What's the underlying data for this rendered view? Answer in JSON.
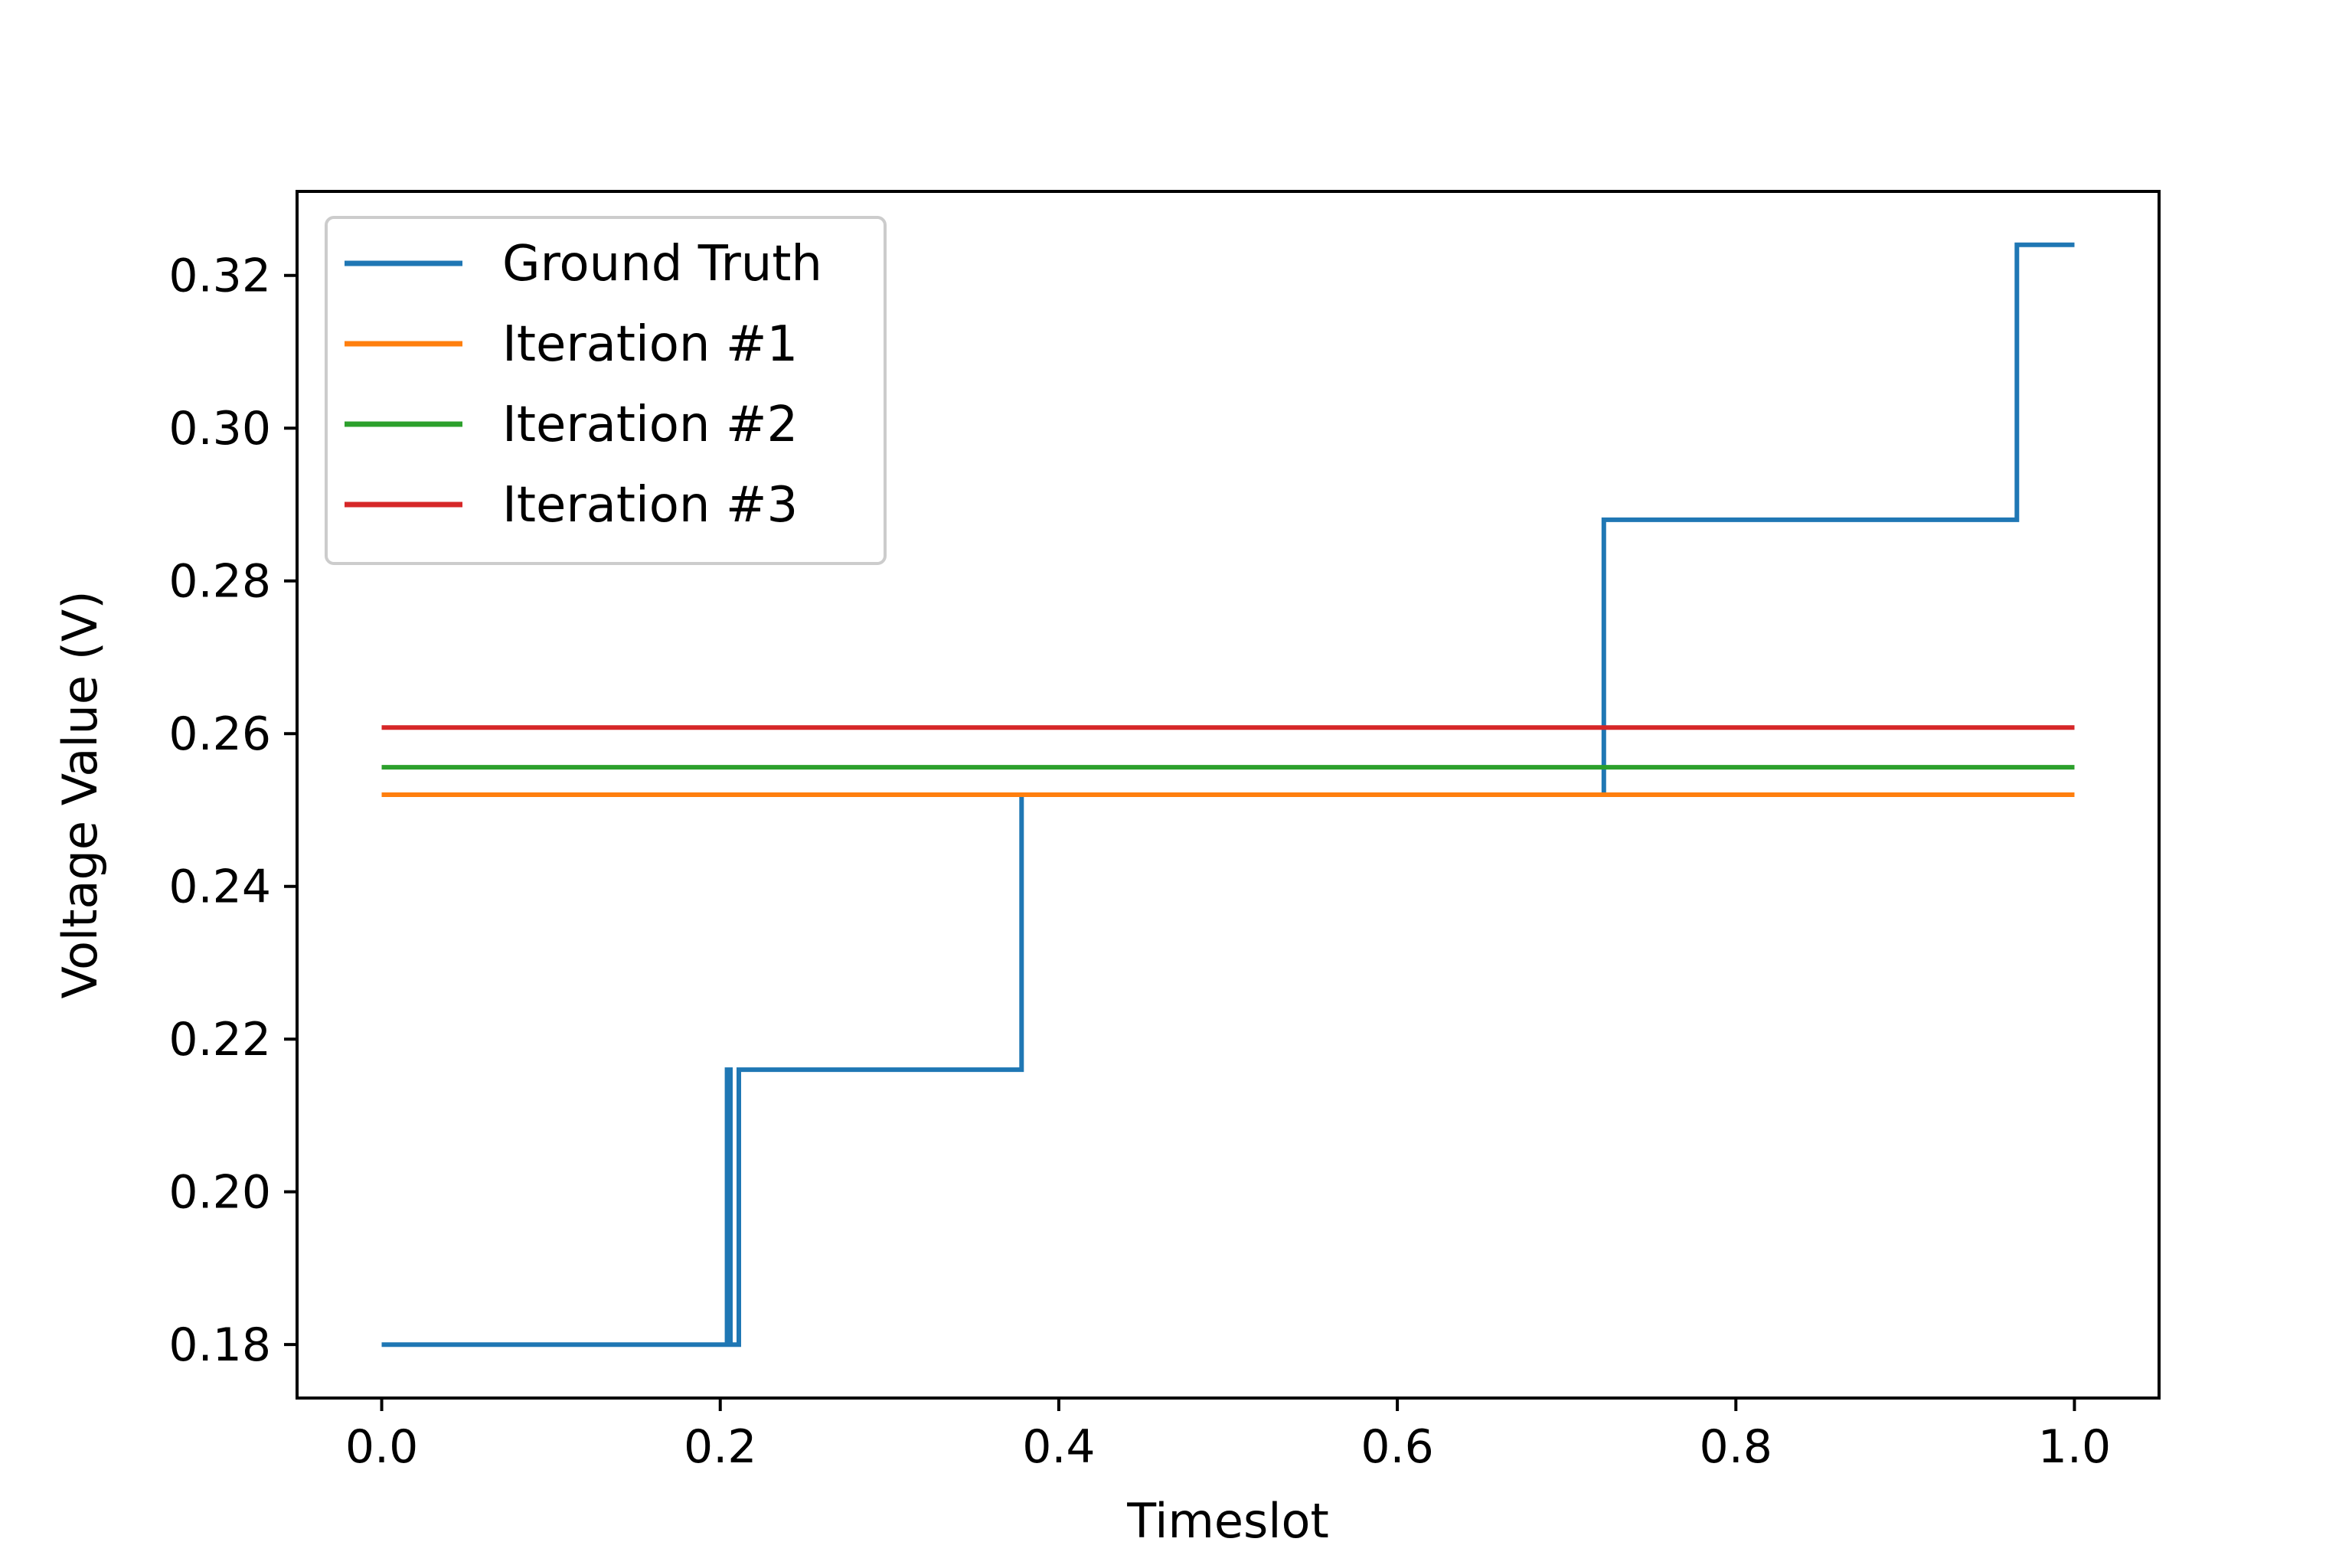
{
  "chart_data": {
    "type": "line",
    "title": "",
    "xlabel": "Timeslot",
    "ylabel": "Voltage Value (V)",
    "xlim": [
      -0.05,
      1.05
    ],
    "ylim": [
      0.173,
      0.331
    ],
    "xticks": [
      0.0,
      0.2,
      0.4,
      0.6,
      0.8,
      1.0
    ],
    "xtick_labels": [
      "0.0",
      "0.2",
      "0.4",
      "0.6",
      "0.8",
      "1.0"
    ],
    "yticks": [
      0.18,
      0.2,
      0.22,
      0.24,
      0.26,
      0.28,
      0.3,
      0.32
    ],
    "ytick_labels": [
      "0.18",
      "0.20",
      "0.22",
      "0.24",
      "0.26",
      "0.28",
      "0.30",
      "0.32"
    ],
    "grid": false,
    "legend_position": "top-left",
    "series": [
      {
        "name": "Ground Truth",
        "color": "#1f77b4",
        "x": [
          0.0,
          0.204,
          0.204,
          0.206,
          0.206,
          0.211,
          0.211,
          0.378,
          0.378,
          0.722,
          0.722,
          0.966,
          0.966,
          1.0
        ],
        "y": [
          0.18,
          0.18,
          0.216,
          0.216,
          0.18,
          0.18,
          0.216,
          0.216,
          0.252,
          0.252,
          0.288,
          0.288,
          0.324,
          0.324
        ]
      },
      {
        "name": "Iteration #1",
        "color": "#ff7f0e",
        "x": [
          0.0,
          1.0
        ],
        "y": [
          0.252,
          0.252
        ]
      },
      {
        "name": "Iteration #2",
        "color": "#2ca02c",
        "x": [
          0.0,
          1.0
        ],
        "y": [
          0.2556,
          0.2556
        ]
      },
      {
        "name": "Iteration #3",
        "color": "#d62728",
        "x": [
          0.0,
          1.0
        ],
        "y": [
          0.2608,
          0.2608
        ]
      }
    ]
  }
}
